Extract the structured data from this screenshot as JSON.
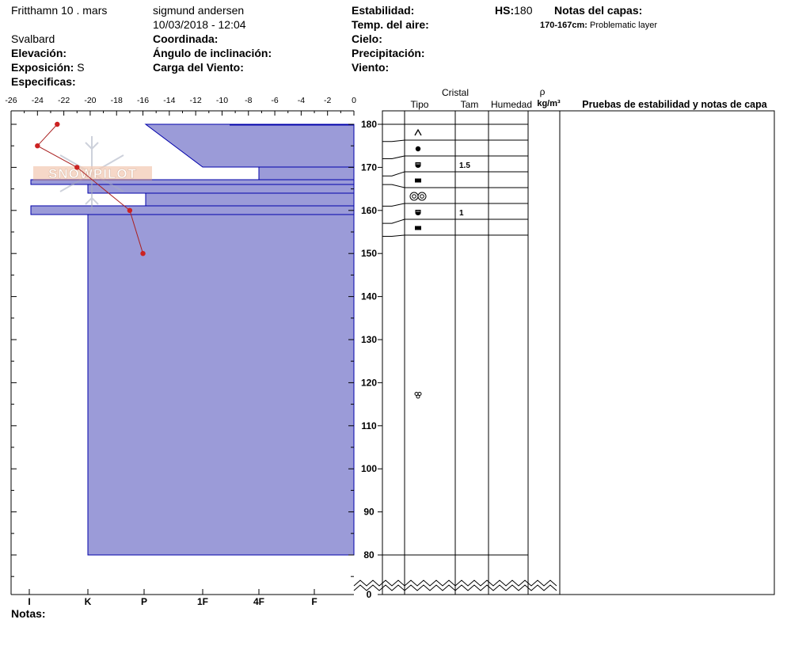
{
  "header": {
    "location": "Fritthamn 10 . mars",
    "region": "Svalbard",
    "observer": "sigmund andersen",
    "datetime": "10/03/2018 - 12:04",
    "elevation_label": "Elevación:",
    "aspect_label": "Exposición:",
    "aspect_value": "S",
    "specifics_label": "Especificas:",
    "coordinate_label": "Coordinada:",
    "slope_label": "Ángulo de inclinación:",
    "wind_loading_label": "Carga del Viento:",
    "stability_label": "Estabilidad:",
    "air_temp_label": "Temp. del aire:",
    "sky_label": "Cielo:",
    "precip_label": "Precipitación:",
    "wind_label": "Viento:",
    "hs_label": "HS:",
    "hs_value": "180",
    "layer_notes_label": "Notas del capas:",
    "layer_note_range": "170-167cm:",
    "layer_note_text": "Problematic layer",
    "notes_label": "Notas:"
  },
  "logo_text": "SNOWPILOT",
  "columns": {
    "cristal": "Cristal",
    "tipo": "Tipo",
    "tam": "Tam",
    "humedad": "Humedad",
    "rho": "ρ",
    "density_unit": "kg/m³",
    "tests": "Pruebas de estabilidad y notas de capa"
  },
  "colors": {
    "hardness_fill": "#9b9bd8",
    "hardness_stroke": "#0000aa",
    "temp_line": "#aa2222",
    "temp_point": "#cc2222"
  },
  "icons": {
    "layer_1": "precipitation-particles-icon",
    "layer_2": "graupel-icon",
    "layer_3": "faceted-rounded-icon",
    "layer_4": "melt-freeze-crust-icon",
    "layer_5": "clustered-grains-icon",
    "layer_6": "faceted-rounded-icon",
    "layer_7": "melt-freeze-crust-icon",
    "lower": "wet-grains-icon"
  },
  "chart_data": {
    "type": "snow-profile",
    "temperature_axis": {
      "ticks": [
        "-26",
        "-24",
        "-22",
        "-20",
        "-18",
        "-16",
        "-14",
        "-12",
        "-10",
        "-8",
        "-6",
        "-4",
        "-2",
        "0"
      ],
      "range": [
        -26,
        0
      ]
    },
    "hardness_axis": {
      "ticks": [
        "I",
        "K",
        "P",
        "1F",
        "4F",
        "F"
      ]
    },
    "height_axis": {
      "ticks": [
        "180",
        "170",
        "160",
        "150",
        "140",
        "130",
        "120",
        "110",
        "100",
        "90",
        "80",
        "0"
      ],
      "unit": "cm"
    },
    "temperature_profile": [
      {
        "height": 180,
        "temp": -22.5
      },
      {
        "height": 175,
        "temp": -24
      },
      {
        "height": 170,
        "temp": -21
      },
      {
        "height": 160,
        "temp": -17
      },
      {
        "height": 150,
        "temp": -16
      }
    ],
    "layers": [
      {
        "top": 180,
        "bottom": 176,
        "type_icon": "precipitation-particles-icon",
        "size": ""
      },
      {
        "top": 176,
        "bottom": 172,
        "type_icon": "graupel-icon",
        "size": ""
      },
      {
        "top": 172,
        "bottom": 168,
        "type_icon": "faceted-rounded-icon",
        "size": "1.5"
      },
      {
        "top": 168,
        "bottom": 166,
        "type_icon": "melt-freeze-crust-icon",
        "size": ""
      },
      {
        "top": 166,
        "bottom": 161,
        "type_icon": "clustered-grains-icon",
        "size": ""
      },
      {
        "top": 161,
        "bottom": 157,
        "type_icon": "faceted-rounded-icon",
        "size": "1"
      },
      {
        "top": 157,
        "bottom": 154,
        "type_icon": "melt-freeze-crust-icon",
        "size": ""
      },
      {
        "top": 154,
        "bottom": 80,
        "type_icon": "wet-grains-icon",
        "size": ""
      }
    ],
    "grid": false
  }
}
